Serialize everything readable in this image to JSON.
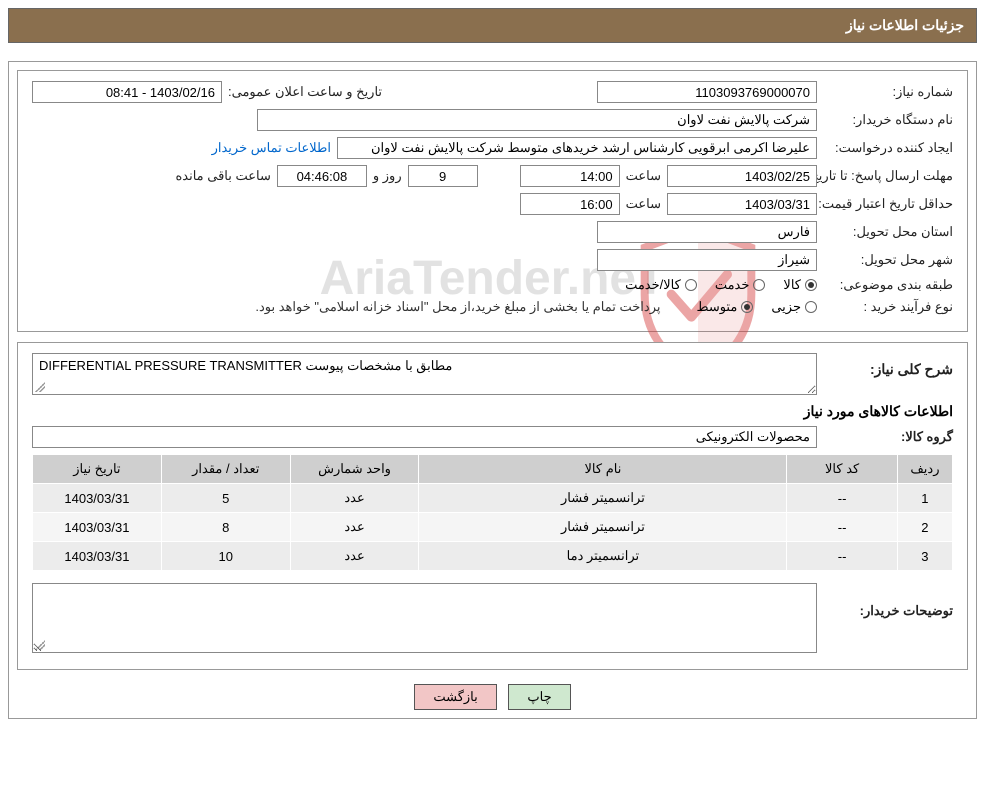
{
  "header": {
    "title": "جزئيات اطلاعات نياز"
  },
  "info": {
    "need_no_label": "شماره نياز:",
    "need_no": "1103093769000070",
    "announce_label": "تاريخ و ساعت اعلان عمومی:",
    "announce_value": "1403/02/16 - 08:41",
    "buyer_org_label": "نام دستگاه خريدار:",
    "buyer_org": "شرکت پالايش نفت لاوان",
    "requester_label": "ايجاد کننده درخواست:",
    "requester": "عليرضا اکرمی ابرقويی کارشناس ارشد خريدهای متوسط شرکت پالايش نفت لاوان",
    "contact_link": "اطلاعات تماس خريدار",
    "deadline_label": "مهلت ارسال پاسخ:  تا تاريخ:",
    "deadline_date": "1403/02/25",
    "time_label": "ساعت",
    "deadline_time": "14:00",
    "days_label": "روز و",
    "days_remaining": "9",
    "remaining_time": "04:46:08",
    "remaining_suffix": "ساعت باقی مانده",
    "price_valid_label": "حداقل تاريخ اعتبار قيمت: تا تاريخ:",
    "price_valid_date": "1403/03/31",
    "price_valid_time": "16:00",
    "delivery_province_label": "استان محل تحويل:",
    "delivery_province": "فارس",
    "delivery_city_label": "شهر محل تحويل:",
    "delivery_city": "شيراز",
    "subject_class_label": "طبقه بندی موضوعی:",
    "radio_goods": "کالا",
    "radio_service": "خدمت",
    "radio_goods_service": "کالا/خدمت",
    "purchase_type_label": "نوع فرآيند خريد :",
    "radio_partial": "جزيی",
    "radio_medium": "متوسط",
    "purchase_note": "پرداخت تمام يا بخشی از مبلغ خريد،از محل \"اسناد خزانه اسلامی\" خواهد بود.",
    "selected_subject": "goods",
    "selected_purchase": "medium"
  },
  "details": {
    "overall_label": "شرح کلی نياز:",
    "overall_text": "DIFFERENTIAL PRESSURE TRANSMITTER مطابق با مشخصات پيوست",
    "goods_info_title": "اطلاعات کالاهای مورد نياز",
    "goods_group_label": "گروه کالا:",
    "goods_group": "محصولات الکترونيکی",
    "table": {
      "columns": [
        "رديف",
        "کد کالا",
        "نام کالا",
        "واحد شمارش",
        "تعداد / مقدار",
        "تاريخ نياز"
      ],
      "col_widths": [
        "6%",
        "12%",
        "40%",
        "14%",
        "14%",
        "14%"
      ],
      "rows": [
        [
          "1",
          "--",
          "ترانسميتر فشار",
          "عدد",
          "5",
          "1403/03/31"
        ],
        [
          "2",
          "--",
          "ترانسميتر فشار",
          "عدد",
          "8",
          "1403/03/31"
        ],
        [
          "3",
          "--",
          "ترانسميتر دما",
          "عدد",
          "10",
          "1403/03/31"
        ]
      ]
    },
    "buyer_notes_label": "توضيحات خريدار:",
    "buyer_notes": ""
  },
  "buttons": {
    "print": "چاپ",
    "back": "بازگشت"
  },
  "watermark_text": "AriaTender.neT",
  "colors": {
    "header_bg": "#8a6f4e",
    "border": "#999999",
    "th_bg": "#cfcfcf",
    "row_odd": "#ececec",
    "row_even": "#f5f5f5",
    "btn_print": "#cfe8cf",
    "btn_back": "#f2c6c6",
    "link": "#0066cc",
    "watermark": "#d0d0d0",
    "shield_stroke": "#d43a3a"
  }
}
